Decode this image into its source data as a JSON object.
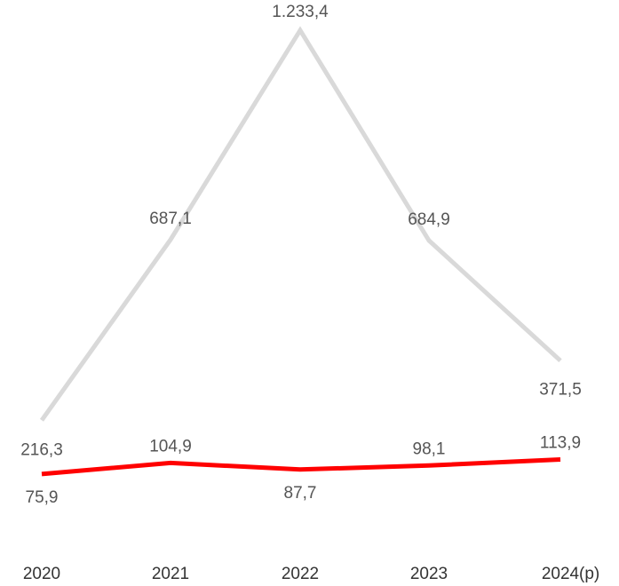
{
  "chart_data": {
    "type": "line",
    "categories": [
      "2020",
      "2021",
      "2022",
      "2023",
      "2024"
    ],
    "x_suffix": "(p)",
    "series": [
      {
        "color": "#d9d9d9",
        "values": [
          216.3,
          687.1,
          1233.4,
          684.9,
          371.5
        ],
        "labels": [
          "216,3",
          "687,1",
          "1.233,4",
          "684,9",
          "371,5"
        ]
      },
      {
        "color": "#ff0000",
        "values": [
          75.9,
          104.9,
          87.7,
          98.1,
          113.9
        ],
        "labels": [
          "75,9",
          "104,9",
          "87,7",
          "98,1",
          "113,9"
        ]
      }
    ],
    "title": "",
    "xlabel": "",
    "ylabel": "",
    "grid": false,
    "legend": "none"
  }
}
